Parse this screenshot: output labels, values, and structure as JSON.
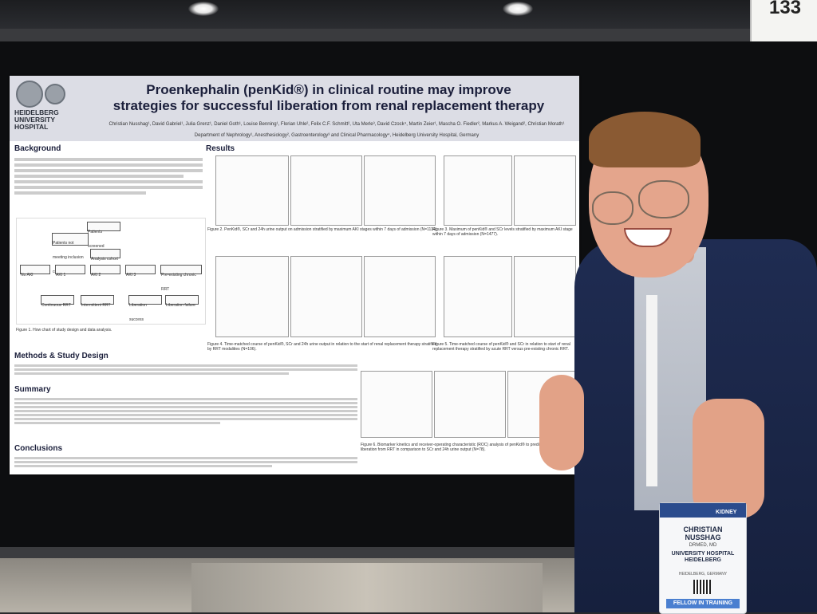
{
  "booth_number": "133",
  "poster": {
    "institution": "HEIDELBERG UNIVERSITY HOSPITAL",
    "title_line1": "Proenkephalin (penKid®) in clinical routine may improve",
    "title_line2": "strategies for successful liberation from renal replacement therapy",
    "authors": "Christian Nusshag¹, David Gabriel¹, Julia Grenz¹, Daniel Goth¹, Louise Benning¹, Florian Uhle², Felix C.F. Schmitt², Uta Merle³, David Czock⁴, Martin Zeier¹, Mascha O. Fiedler², Markus A. Weigand², Christian Morath¹",
    "affiliations": "Department of Nephrology¹, Anesthesiology², Gastroenterology³ and Clinical Pharmacology⁴, Heidelberg University Hospital, Germany",
    "sections": {
      "background": "Background",
      "results": "Results",
      "methods": "Methods & Study Design",
      "summary": "Summary",
      "conclusions": "Conclusions"
    },
    "figure_captions": {
      "fig1": "Figure 1. How chart of study design and data analysis.",
      "fig2": "Figure 2. PenKid®, SCr and 24h urine output on admission stratified by maximum AKI stages within 7 days of admission (N=1114).",
      "fig3": "Figure 3. Maximum of penKid® and SCr levels stratified by maximum AKI stage within 7 days of admission (N=1477).",
      "fig4": "Figure 4. Time-matched course of penKid®, SCr and 24h urine output in relation to the start of renal replacement therapy stratified by RRT modalities (N=106).",
      "fig5": "Figure 5. Time-matched course of penKid® and SCr in relation to start of renal replacement therapy stratified by acute RRT versus pre-existing chronic RRT.",
      "fig6": "Figure 6. Biomarker kinetics and receiver-operating characteristic (ROC) analysis of penKid® to predict successful liberation from RRT in comparison to SCr and 24h urine output (N=78)."
    },
    "flowchart": {
      "root": "Patients screened",
      "exclusion": "Patients not meeting inclusion criteria",
      "analysis": "Analysis cohort",
      "stages": [
        "No AKI",
        "AKI 1",
        "AKI 2",
        "AKI 3",
        "Pre-existing chronic RRT"
      ],
      "rrt": [
        "Continuous RRT",
        "Intermittent RRT",
        "Liberation success",
        "Liberation failure"
      ]
    }
  },
  "badge": {
    "name": "CHRISTIAN NUSSHAG",
    "credentials": "DRMED, MD",
    "organization": "UNIVERSITY HOSPITAL HEIDELBERG",
    "location": "HEIDELBERG, GERMANY",
    "ribbon": "FELLOW IN TRAINING",
    "header": "KIDNEY"
  },
  "colors": {
    "poster_header": "#dcdde5",
    "title": "#1b1f3b",
    "jacket": "#1f2c52",
    "badge_ribbon": "#4a7fd0"
  }
}
